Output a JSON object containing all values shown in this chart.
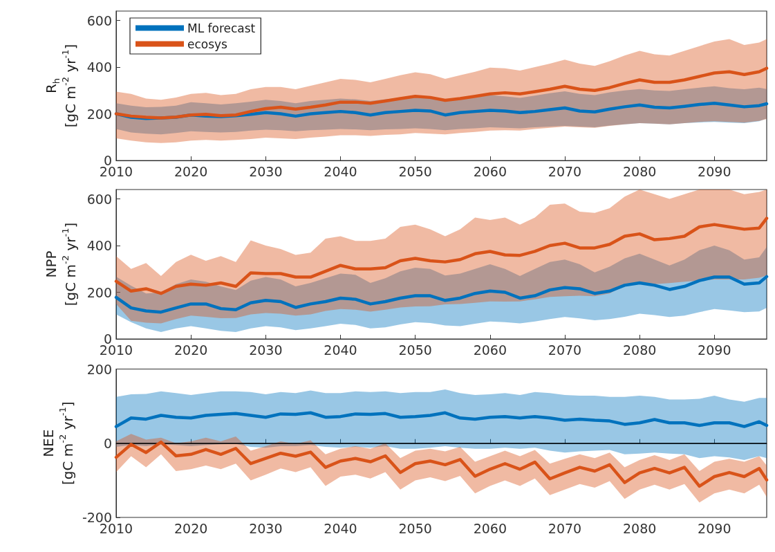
{
  "chart_data": [
    {
      "type": "line",
      "ylabel": "R$_{h}$\n[gC m$^{-2}$ yr$^{-1}$]",
      "legend": "top left",
      "xlim": [
        2010,
        2097
      ],
      "ylim": [
        0,
        640
      ],
      "xticks": [
        2010,
        2020,
        2030,
        2040,
        2050,
        2060,
        2070,
        2080,
        2090
      ],
      "yticks": [
        0,
        200,
        400,
        600
      ],
      "x": [
        2010,
        2012,
        2014,
        2016,
        2018,
        2020,
        2022,
        2024,
        2026,
        2028,
        2030,
        2032,
        2034,
        2036,
        2038,
        2040,
        2042,
        2044,
        2046,
        2048,
        2050,
        2052,
        2054,
        2056,
        2058,
        2060,
        2062,
        2064,
        2066,
        2068,
        2070,
        2072,
        2074,
        2076,
        2078,
        2080,
        2082,
        2084,
        2086,
        2088,
        2090,
        2092,
        2094,
        2096,
        2097
      ],
      "series": [
        {
          "name": "ML forecast",
          "color": "#0072bd",
          "values": [
            200,
            185,
            180,
            182,
            185,
            195,
            190,
            188,
            192,
            198,
            205,
            200,
            190,
            200,
            205,
            210,
            205,
            195,
            205,
            210,
            215,
            212,
            195,
            205,
            210,
            215,
            212,
            205,
            210,
            218,
            225,
            212,
            208,
            220,
            230,
            238,
            228,
            225,
            232,
            240,
            245,
            238,
            230,
            235,
            243
          ],
          "lower": [
            135,
            120,
            115,
            112,
            118,
            125,
            122,
            120,
            122,
            128,
            132,
            130,
            125,
            130,
            132,
            135,
            133,
            130,
            133,
            135,
            138,
            135,
            130,
            135,
            138,
            142,
            140,
            138,
            142,
            145,
            148,
            145,
            142,
            150,
            155,
            160,
            158,
            155,
            160,
            163,
            165,
            162,
            160,
            168,
            180
          ],
          "upper": [
            245,
            235,
            228,
            230,
            235,
            250,
            245,
            240,
            245,
            252,
            260,
            255,
            245,
            255,
            260,
            265,
            262,
            255,
            262,
            268,
            272,
            268,
            255,
            265,
            270,
            280,
            275,
            268,
            278,
            288,
            296,
            285,
            280,
            292,
            300,
            306,
            300,
            298,
            305,
            312,
            318,
            310,
            305,
            312,
            306
          ]
        },
        {
          "name": "ecosys",
          "color": "#d95319",
          "values": [
            200,
            190,
            185,
            182,
            186,
            195,
            198,
            192,
            195,
            210,
            222,
            228,
            220,
            228,
            238,
            250,
            250,
            245,
            255,
            265,
            275,
            270,
            258,
            265,
            275,
            285,
            290,
            285,
            295,
            305,
            318,
            305,
            300,
            312,
            330,
            345,
            335,
            335,
            345,
            360,
            375,
            380,
            368,
            380,
            395
          ],
          "lower": [
            95,
            85,
            78,
            75,
            78,
            85,
            88,
            85,
            88,
            92,
            98,
            95,
            92,
            98,
            102,
            108,
            108,
            105,
            110,
            112,
            118,
            115,
            112,
            118,
            122,
            128,
            130,
            128,
            135,
            140,
            145,
            142,
            140,
            148,
            155,
            160,
            158,
            155,
            160,
            165,
            168,
            165,
            162,
            170,
            178
          ],
          "upper": [
            295,
            285,
            265,
            260,
            270,
            285,
            290,
            280,
            285,
            305,
            315,
            315,
            305,
            320,
            335,
            350,
            345,
            335,
            350,
            365,
            378,
            370,
            350,
            365,
            380,
            398,
            395,
            385,
            400,
            415,
            432,
            415,
            405,
            425,
            450,
            470,
            455,
            450,
            470,
            490,
            510,
            520,
            495,
            505,
            520
          ]
        }
      ]
    },
    {
      "type": "line",
      "ylabel": "NPP\n[gC m$^{-2}$ yr$^{-1}$]",
      "xlim": [
        2010,
        2097
      ],
      "ylim": [
        0,
        640
      ],
      "xticks": [
        2010,
        2020,
        2030,
        2040,
        2050,
        2060,
        2070,
        2080,
        2090
      ],
      "yticks": [
        0,
        200,
        400,
        600
      ],
      "x": [
        2010,
        2012,
        2014,
        2016,
        2018,
        2020,
        2022,
        2024,
        2026,
        2028,
        2030,
        2032,
        2034,
        2036,
        2038,
        2040,
        2042,
        2044,
        2046,
        2048,
        2050,
        2052,
        2054,
        2056,
        2058,
        2060,
        2062,
        2064,
        2066,
        2068,
        2070,
        2072,
        2074,
        2076,
        2078,
        2080,
        2082,
        2084,
        2086,
        2088,
        2090,
        2092,
        2094,
        2096,
        2097
      ],
      "series": [
        {
          "color": "#0072bd",
          "values": [
            178,
            133,
            120,
            115,
            133,
            150,
            150,
            130,
            125,
            155,
            165,
            160,
            135,
            150,
            160,
            175,
            170,
            150,
            160,
            175,
            185,
            185,
            165,
            175,
            195,
            205,
            200,
            175,
            185,
            210,
            220,
            215,
            195,
            205,
            230,
            240,
            230,
            212,
            225,
            250,
            265,
            265,
            235,
            240,
            267
          ],
          "lower": [
            105,
            72,
            45,
            30,
            45,
            55,
            45,
            35,
            30,
            45,
            55,
            50,
            38,
            45,
            55,
            65,
            60,
            45,
            50,
            62,
            72,
            68,
            58,
            55,
            65,
            75,
            72,
            67,
            75,
            85,
            94,
            88,
            80,
            85,
            95,
            108,
            102,
            94,
            100,
            115,
            128,
            122,
            115,
            118,
            133
          ],
          "upper": [
            267,
            228,
            195,
            200,
            235,
            255,
            245,
            225,
            210,
            250,
            265,
            255,
            225,
            240,
            260,
            280,
            275,
            240,
            260,
            290,
            305,
            300,
            272,
            280,
            300,
            320,
            300,
            270,
            300,
            330,
            340,
            320,
            285,
            310,
            345,
            365,
            340,
            315,
            340,
            380,
            400,
            380,
            340,
            350,
            394
          ]
        },
        {
          "color": "#d95319",
          "values": [
            247,
            205,
            215,
            195,
            225,
            235,
            230,
            240,
            225,
            283,
            280,
            280,
            265,
            265,
            290,
            315,
            300,
            300,
            305,
            335,
            345,
            335,
            330,
            340,
            365,
            375,
            360,
            358,
            375,
            400,
            410,
            390,
            390,
            405,
            440,
            450,
            425,
            430,
            440,
            480,
            490,
            480,
            470,
            475,
            517
          ],
          "lower": [
            150,
            78,
            70,
            67,
            85,
            100,
            95,
            89,
            90,
            105,
            111,
            108,
            100,
            105,
            120,
            128,
            125,
            117,
            125,
            135,
            139,
            140,
            148,
            150,
            155,
            161,
            160,
            161,
            170,
            180,
            183,
            185,
            183,
            195,
            228,
            239,
            235,
            239,
            245,
            250,
            255,
            255,
            255,
            262,
            272
          ],
          "upper": [
            355,
            300,
            325,
            270,
            330,
            361,
            335,
            355,
            330,
            422,
            400,
            385,
            360,
            370,
            430,
            440,
            420,
            420,
            430,
            480,
            490,
            470,
            440,
            470,
            520,
            510,
            520,
            490,
            520,
            575,
            580,
            545,
            540,
            560,
            610,
            640,
            620,
            600,
            620,
            640,
            640,
            640,
            620,
            630,
            640
          ]
        }
      ]
    },
    {
      "type": "line",
      "ylabel": "NEE\n[gC m$^{-2}$ yr$^{-1}$]",
      "xlim": [
        2010,
        2097
      ],
      "ylim": [
        -200,
        200
      ],
      "xticks": [
        2010,
        2020,
        2030,
        2040,
        2050,
        2060,
        2070,
        2080,
        2090
      ],
      "yticks": [
        -200,
        0,
        200
      ],
      "ref_lines": [
        {
          "axis": "y",
          "value": 0,
          "color": "#000000"
        }
      ],
      "x": [
        2010,
        2012,
        2014,
        2016,
        2018,
        2020,
        2022,
        2024,
        2026,
        2028,
        2030,
        2032,
        2034,
        2036,
        2038,
        2040,
        2042,
        2044,
        2046,
        2048,
        2050,
        2052,
        2054,
        2056,
        2058,
        2060,
        2062,
        2064,
        2066,
        2068,
        2070,
        2072,
        2074,
        2076,
        2078,
        2080,
        2082,
        2084,
        2086,
        2088,
        2090,
        2092,
        2094,
        2096,
        2097
      ],
      "series": [
        {
          "color": "#0072bd",
          "values": [
            45,
            68,
            65,
            75,
            70,
            68,
            75,
            78,
            80,
            75,
            70,
            79,
            78,
            82,
            70,
            72,
            79,
            78,
            80,
            70,
            72,
            75,
            82,
            68,
            65,
            70,
            72,
            68,
            72,
            68,
            62,
            65,
            62,
            60,
            51,
            55,
            64,
            55,
            55,
            48,
            55,
            55,
            45,
            58,
            48
          ],
          "lower": [
            -10,
            -5,
            -8,
            -3,
            -5,
            -8,
            -5,
            -3,
            -2,
            -10,
            -12,
            -8,
            -8,
            -5,
            -10,
            -12,
            -10,
            -12,
            -8,
            -15,
            -15,
            -12,
            -8,
            -12,
            -15,
            -15,
            -12,
            -15,
            -12,
            -20,
            -25,
            -22,
            -20,
            -18,
            -30,
            -28,
            -25,
            -28,
            -30,
            -40,
            -35,
            -38,
            -45,
            -35,
            -40
          ],
          "upper": [
            125,
            132,
            133,
            140,
            135,
            130,
            135,
            140,
            140,
            138,
            132,
            138,
            135,
            142,
            135,
            135,
            140,
            138,
            140,
            135,
            138,
            138,
            145,
            135,
            130,
            132,
            135,
            130,
            138,
            135,
            130,
            128,
            128,
            125,
            125,
            128,
            125,
            118,
            118,
            120,
            128,
            118,
            112,
            122,
            122
          ]
        },
        {
          "color": "#d95319",
          "values": [
            -38,
            -3,
            -25,
            3,
            -34,
            -30,
            -17,
            -30,
            -14,
            -55,
            -41,
            -27,
            -35,
            -24,
            -65,
            -48,
            -41,
            -50,
            -34,
            -79,
            -55,
            -48,
            -58,
            -44,
            -89,
            -70,
            -55,
            -70,
            -51,
            -96,
            -80,
            -65,
            -75,
            -58,
            -106,
            -80,
            -68,
            -80,
            -65,
            -116,
            -90,
            -79,
            -90,
            -68,
            -99
          ],
          "lower": [
            -78,
            -35,
            -65,
            -30,
            -75,
            -70,
            -60,
            -70,
            -55,
            -100,
            -85,
            -68,
            -78,
            -65,
            -115,
            -90,
            -85,
            -95,
            -78,
            -125,
            -100,
            -92,
            -102,
            -88,
            -135,
            -115,
            -100,
            -115,
            -95,
            -140,
            -125,
            -110,
            -120,
            -102,
            -150,
            -125,
            -112,
            -125,
            -110,
            -160,
            -135,
            -125,
            -135,
            -112,
            -145
          ],
          "upper": [
            5,
            25,
            10,
            15,
            0,
            5,
            15,
            5,
            18,
            -20,
            -8,
            5,
            -2,
            8,
            -30,
            -15,
            -8,
            -15,
            0,
            -40,
            -20,
            -15,
            -22,
            -10,
            -50,
            -35,
            -20,
            -35,
            -18,
            -55,
            -42,
            -30,
            -40,
            -25,
            -65,
            -45,
            -32,
            -45,
            -30,
            -75,
            -50,
            -42,
            -50,
            -35,
            -60
          ]
        }
      ]
    }
  ]
}
